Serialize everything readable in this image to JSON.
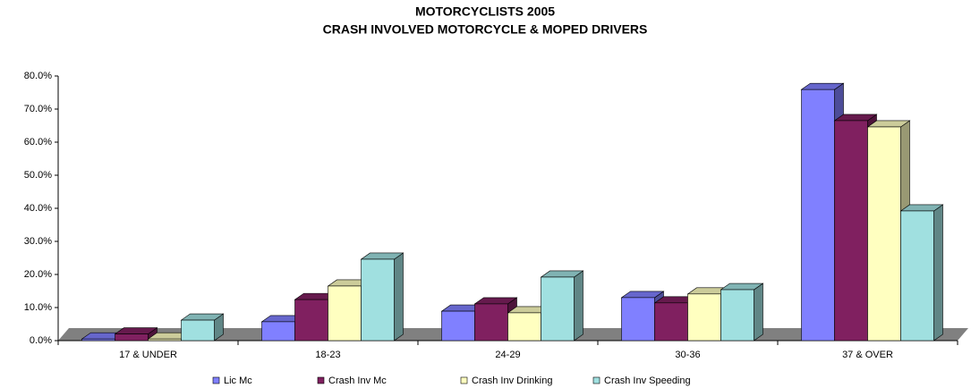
{
  "chart_data": {
    "type": "bar3d",
    "title": "MOTORCYCLISTS 2005",
    "subtitle": "CRASH INVOLVED MOTORCYCLE & MOPED DRIVERS",
    "categories": [
      "17 & UNDER",
      "18-23",
      "24-29",
      "30-36",
      "37 & OVER"
    ],
    "series": [
      {
        "name": "Lic Mc",
        "color": "#8080ff",
        "values": [
          0.5,
          5.7,
          8.9,
          13.0,
          75.9
        ]
      },
      {
        "name": "Crash Inv Mc",
        "color": "#802060",
        "values": [
          2.0,
          12.4,
          11.1,
          11.4,
          66.5
        ]
      },
      {
        "name": "Crash Inv Drinking",
        "color": "#ffffc0",
        "values": [
          0.5,
          16.5,
          8.4,
          14.1,
          64.6
        ]
      },
      {
        "name": "Crash Inv Speeding",
        "color": "#a0e0e0",
        "values": [
          6.2,
          24.6,
          19.2,
          15.4,
          39.2
        ]
      }
    ],
    "ylim": [
      0,
      80
    ],
    "yticks": [
      {
        "value": 0,
        "label": "0.0%"
      },
      {
        "value": 10,
        "label": "10.0%"
      },
      {
        "value": 20,
        "label": "20.0%"
      },
      {
        "value": 30,
        "label": "30.0%"
      },
      {
        "value": 40,
        "label": "40.0%"
      },
      {
        "value": 50,
        "label": "50.0%"
      },
      {
        "value": 60,
        "label": "60.0%"
      },
      {
        "value": 70,
        "label": "70.0%"
      },
      {
        "value": 80,
        "label": "80.0%"
      }
    ],
    "legend": "bottom"
  }
}
